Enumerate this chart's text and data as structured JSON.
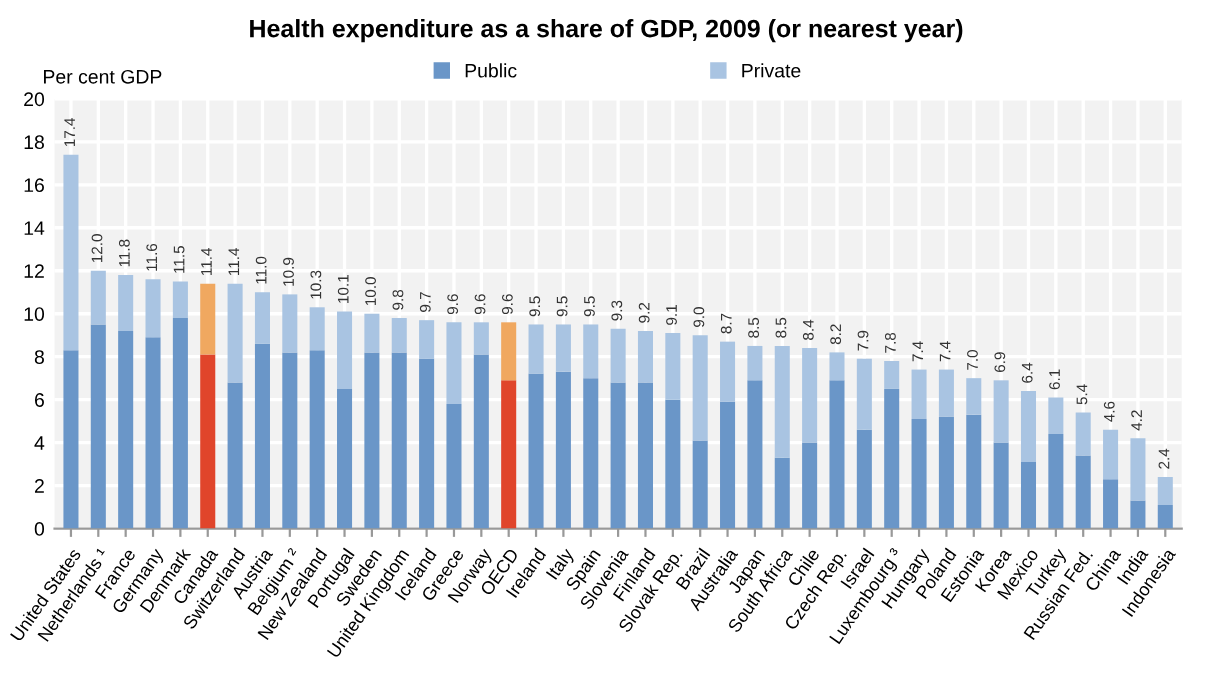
{
  "chart_data": {
    "type": "bar",
    "title": "Health expenditure as a share of GDP, 2009 (or nearest year)",
    "ylabel": "Per cent GDP",
    "categories": [
      "United States",
      "Netherlands ¹",
      "France",
      "Germany",
      "Denmark",
      "Canada",
      "Switzerland",
      "Austria",
      "Belgium ²",
      "New Zealand",
      "Portugal",
      "Sweden",
      "United Kingdom",
      "Iceland",
      "Greece",
      "Norway",
      "OECD",
      "Ireland",
      "Italy",
      "Spain",
      "Slovenia",
      "Finland",
      "Slovak Rep.",
      "Brazil",
      "Australia",
      "Japan",
      "South Africa",
      "Chile",
      "Czech Rep.",
      "Israel",
      "Luxembourg ³",
      "Hungary",
      "Poland",
      "Estonia",
      "Korea",
      "Mexico",
      "Turkey",
      "Russian Fed.",
      "China",
      "India",
      "Indonesia"
    ],
    "stacked": true,
    "series": [
      {
        "name": "Public",
        "color": "#6a96c8",
        "colors": [
          "#6a96c8",
          "#6a96c8",
          "#6a96c8",
          "#6a96c8",
          "#6a96c8",
          "#e0452b",
          "#6a96c8",
          "#6a96c8",
          "#6a96c8",
          "#6a96c8",
          "#6a96c8",
          "#6a96c8",
          "#6a96c8",
          "#6a96c8",
          "#6a96c8",
          "#6a96c8",
          "#e0452b",
          "#6a96c8",
          "#6a96c8",
          "#6a96c8",
          "#6a96c8",
          "#6a96c8",
          "#6a96c8",
          "#6a96c8",
          "#6a96c8",
          "#6a96c8",
          "#6a96c8",
          "#6a96c8",
          "#6a96c8",
          "#6a96c8",
          "#6a96c8",
          "#6a96c8",
          "#6a96c8",
          "#6a96c8",
          "#6a96c8",
          "#6a96c8",
          "#6a96c8",
          "#6a96c8",
          "#6a96c8",
          "#6a96c8",
          "#6a96c8"
        ],
        "values": [
          8.3,
          9.5,
          9.2,
          8.9,
          9.8,
          8.1,
          6.8,
          8.6,
          8.2,
          8.3,
          6.5,
          8.2,
          8.2,
          7.9,
          5.8,
          8.1,
          6.9,
          7.2,
          7.3,
          7.0,
          6.8,
          6.8,
          6.0,
          4.1,
          5.9,
          6.9,
          3.3,
          4.0,
          6.9,
          4.6,
          6.5,
          5.1,
          5.2,
          5.3,
          4.0,
          3.1,
          4.4,
          3.4,
          2.3,
          1.3,
          1.1
        ]
      },
      {
        "name": "Private",
        "color": "#a9c4e2",
        "colors": [
          "#a9c4e2",
          "#a9c4e2",
          "#a9c4e2",
          "#a9c4e2",
          "#a9c4e2",
          "#f0a860",
          "#a9c4e2",
          "#a9c4e2",
          "#a9c4e2",
          "#a9c4e2",
          "#a9c4e2",
          "#a9c4e2",
          "#a9c4e2",
          "#a9c4e2",
          "#a9c4e2",
          "#a9c4e2",
          "#f0a860",
          "#a9c4e2",
          "#a9c4e2",
          "#a9c4e2",
          "#a9c4e2",
          "#a9c4e2",
          "#a9c4e2",
          "#a9c4e2",
          "#a9c4e2",
          "#a9c4e2",
          "#a9c4e2",
          "#a9c4e2",
          "#a9c4e2",
          "#a9c4e2",
          "#a9c4e2",
          "#a9c4e2",
          "#a9c4e2",
          "#a9c4e2",
          "#a9c4e2",
          "#a9c4e2",
          "#a9c4e2",
          "#a9c4e2",
          "#a9c4e2",
          "#a9c4e2",
          "#a9c4e2"
        ],
        "values": [
          9.1,
          2.5,
          2.6,
          2.7,
          1.7,
          3.3,
          4.6,
          2.4,
          2.7,
          2.0,
          3.6,
          1.8,
          1.6,
          1.8,
          3.8,
          1.5,
          2.7,
          2.3,
          2.2,
          2.5,
          2.5,
          2.4,
          3.1,
          4.9,
          2.8,
          1.6,
          5.2,
          4.4,
          1.3,
          3.3,
          1.3,
          2.3,
          2.2,
          1.7,
          2.9,
          3.3,
          1.7,
          2.0,
          2.3,
          2.9,
          1.3
        ]
      }
    ],
    "totals": [
      "17.4",
      "12.0",
      "11.8",
      "11.6",
      "11.5",
      "11.4",
      "11.4",
      "11.0",
      "10.9",
      "10.3",
      "10.1",
      "10.0",
      "9.8",
      "9.7",
      "9.6",
      "9.6",
      "9.6",
      "9.5",
      "9.5",
      "9.5",
      "9.3",
      "9.2",
      "9.1",
      "9.0",
      "8.7",
      "8.5",
      "8.5",
      "8.4",
      "8.2",
      "7.9",
      "7.8",
      "7.4",
      "7.4",
      "7.0",
      "6.9",
      "6.4",
      "6.1",
      "5.4",
      "4.6",
      "4.2",
      "2.4"
    ],
    "ylim": [
      0,
      20
    ],
    "yticks": [
      0,
      2,
      4,
      6,
      8,
      10,
      12,
      14,
      16,
      18,
      20
    ],
    "grid": true,
    "legend": "top"
  }
}
